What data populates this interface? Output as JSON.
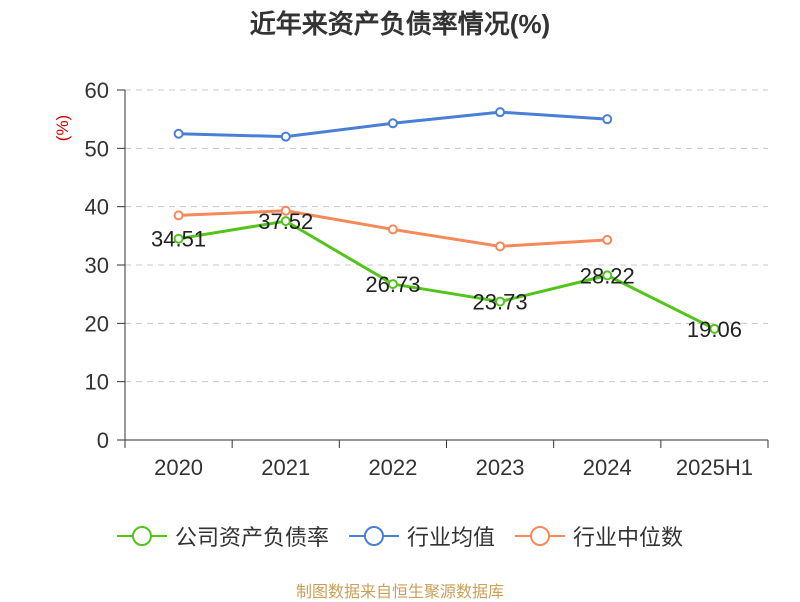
{
  "chart_data": {
    "type": "line",
    "title": "近年来资产负债率情况(%)",
    "ylabel": "(%)",
    "categories": [
      "2020",
      "2021",
      "2022",
      "2023",
      "2024",
      "2025H1"
    ],
    "ylim": [
      0,
      60
    ],
    "yticks": [
      0,
      10,
      20,
      30,
      40,
      50,
      60
    ],
    "grid": true,
    "legend_position": "bottom",
    "series": [
      {
        "name": "公司资产负债率",
        "color": "#52c41a",
        "values": [
          34.51,
          37.52,
          26.73,
          23.73,
          28.22,
          19.06
        ],
        "labels": [
          "34.51",
          "37.52",
          "26.73",
          "23.73",
          "28.22",
          "19.06"
        ]
      },
      {
        "name": "行业均值",
        "color": "#4a7fd6",
        "values": [
          52.5,
          52.0,
          54.3,
          56.2,
          55.0,
          null
        ]
      },
      {
        "name": "行业中位数",
        "color": "#f5895a",
        "values": [
          38.5,
          39.3,
          36.1,
          33.2,
          34.3,
          null
        ]
      }
    ]
  },
  "source": "制图数据来自恒生聚源数据库"
}
